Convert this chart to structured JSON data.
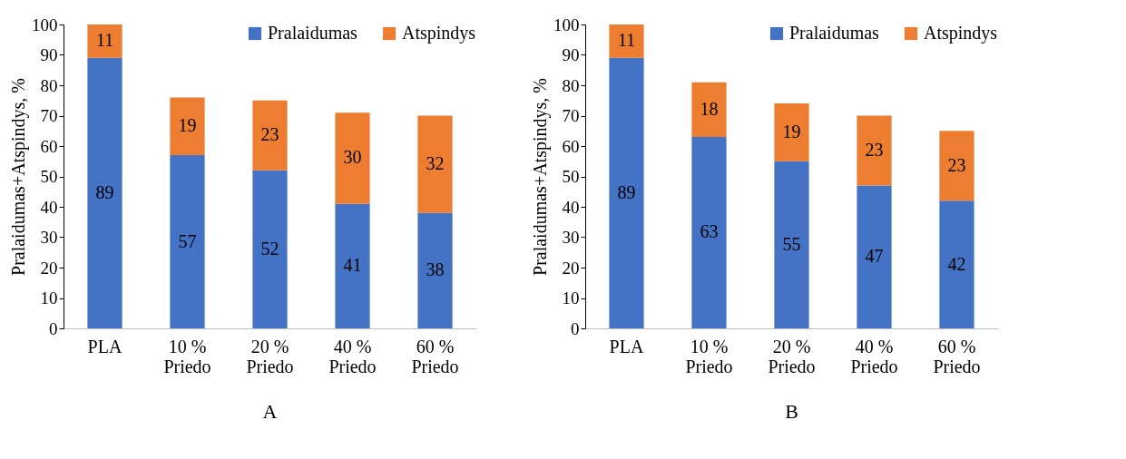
{
  "chart_data": [
    {
      "type": "bar",
      "stacked": true,
      "categories": [
        "PLA",
        "10 % Priedo",
        "20 % Priedo",
        "40 % Priedo",
        "60 % Priedo"
      ],
      "ylabel": "Pralaidumas+Atspindys, %",
      "ylim": [
        0,
        100
      ],
      "yticks": [
        0,
        10,
        20,
        30,
        40,
        50,
        60,
        70,
        80,
        90,
        100
      ],
      "grid": false,
      "legend": "top right",
      "data_labels": true,
      "annotations": [
        "A"
      ],
      "series": [
        {
          "name": "Pralaidumas",
          "color": "#4472c4",
          "values": [
            89,
            57,
            52,
            41,
            38
          ]
        },
        {
          "name": "Atspindys",
          "color": "#ed7d31",
          "values": [
            11,
            19,
            23,
            30,
            32
          ]
        }
      ]
    },
    {
      "type": "bar",
      "stacked": true,
      "categories": [
        "PLA",
        "10 % Priedo",
        "20 % Priedo",
        "40 % Priedo",
        "60 % Priedo"
      ],
      "ylabel": "Pralaidumas+Atspindys, %",
      "ylim": [
        0,
        100
      ],
      "yticks": [
        0,
        10,
        20,
        30,
        40,
        50,
        60,
        70,
        80,
        90,
        100
      ],
      "grid": false,
      "legend": "top right",
      "data_labels": true,
      "annotations": [
        "B"
      ],
      "series": [
        {
          "name": "Pralaidumas",
          "color": "#4472c4",
          "values": [
            89,
            63,
            55,
            47,
            42
          ]
        },
        {
          "name": "Atspindys",
          "color": "#ed7d31",
          "values": [
            11,
            18,
            19,
            23,
            23
          ]
        }
      ]
    }
  ]
}
